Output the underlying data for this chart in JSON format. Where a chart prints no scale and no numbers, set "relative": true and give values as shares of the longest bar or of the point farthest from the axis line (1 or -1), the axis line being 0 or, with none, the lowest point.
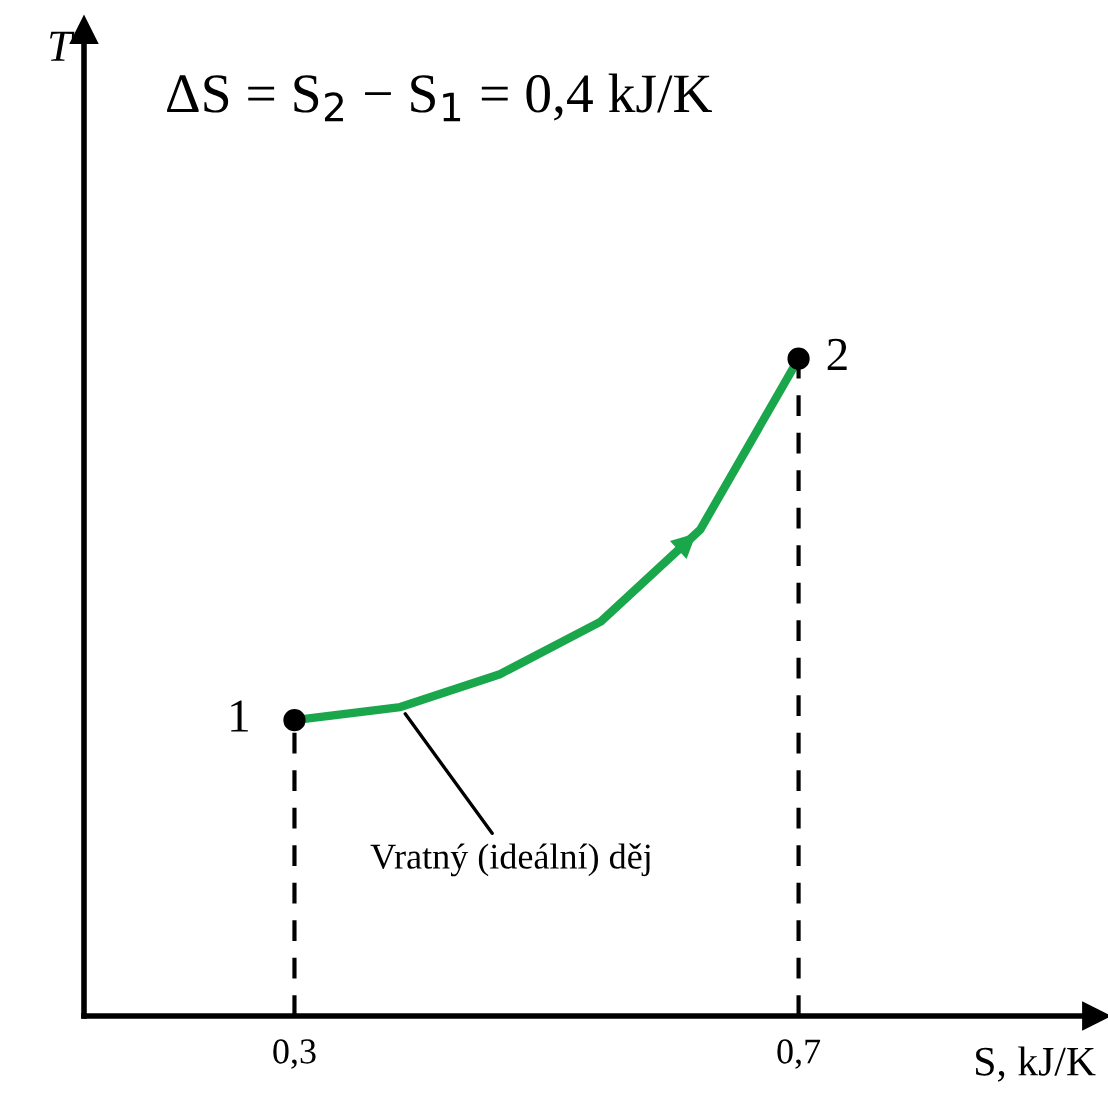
{
  "chart_data": {
    "type": "line",
    "relative": true,
    "title": "ΔS = S$_{2}$ − S$_{1}$ = 0,4 kJ/K",
    "xlabel": "S, kJ/K",
    "xlim": [
      0.133,
      0.936
    ],
    "xticks": [
      {
        "value": 0.3,
        "label": "0,3"
      },
      {
        "value": 0.7,
        "label": "0,7"
      }
    ],
    "tick_labels": "x",
    "series": [
      {
        "color": "#1aa64a",
        "x": [
          0.3,
          0.384,
          0.463,
          0.543,
          0.622,
          0.7
        ],
        "values": [
          0.45,
          0.47,
          0.52,
          0.6,
          0.74,
          1
        ]
      },
      {
        "type": "lollipop",
        "color": "#000000",
        "line_style": "dashed",
        "marker": "circle",
        "x": [
          0.3,
          0.7
        ],
        "values": [
          0.45,
          1
        ]
      }
    ],
    "annotations": [
      "T",
      {
        "text": "1",
        "x": 0.3,
        "y": 0.45
      },
      {
        "text": "2",
        "x": 0.7,
        "y": 1
      },
      {
        "text": "Vratný (ideální) děj",
        "x": 0.384,
        "y": 0.47
      }
    ]
  }
}
